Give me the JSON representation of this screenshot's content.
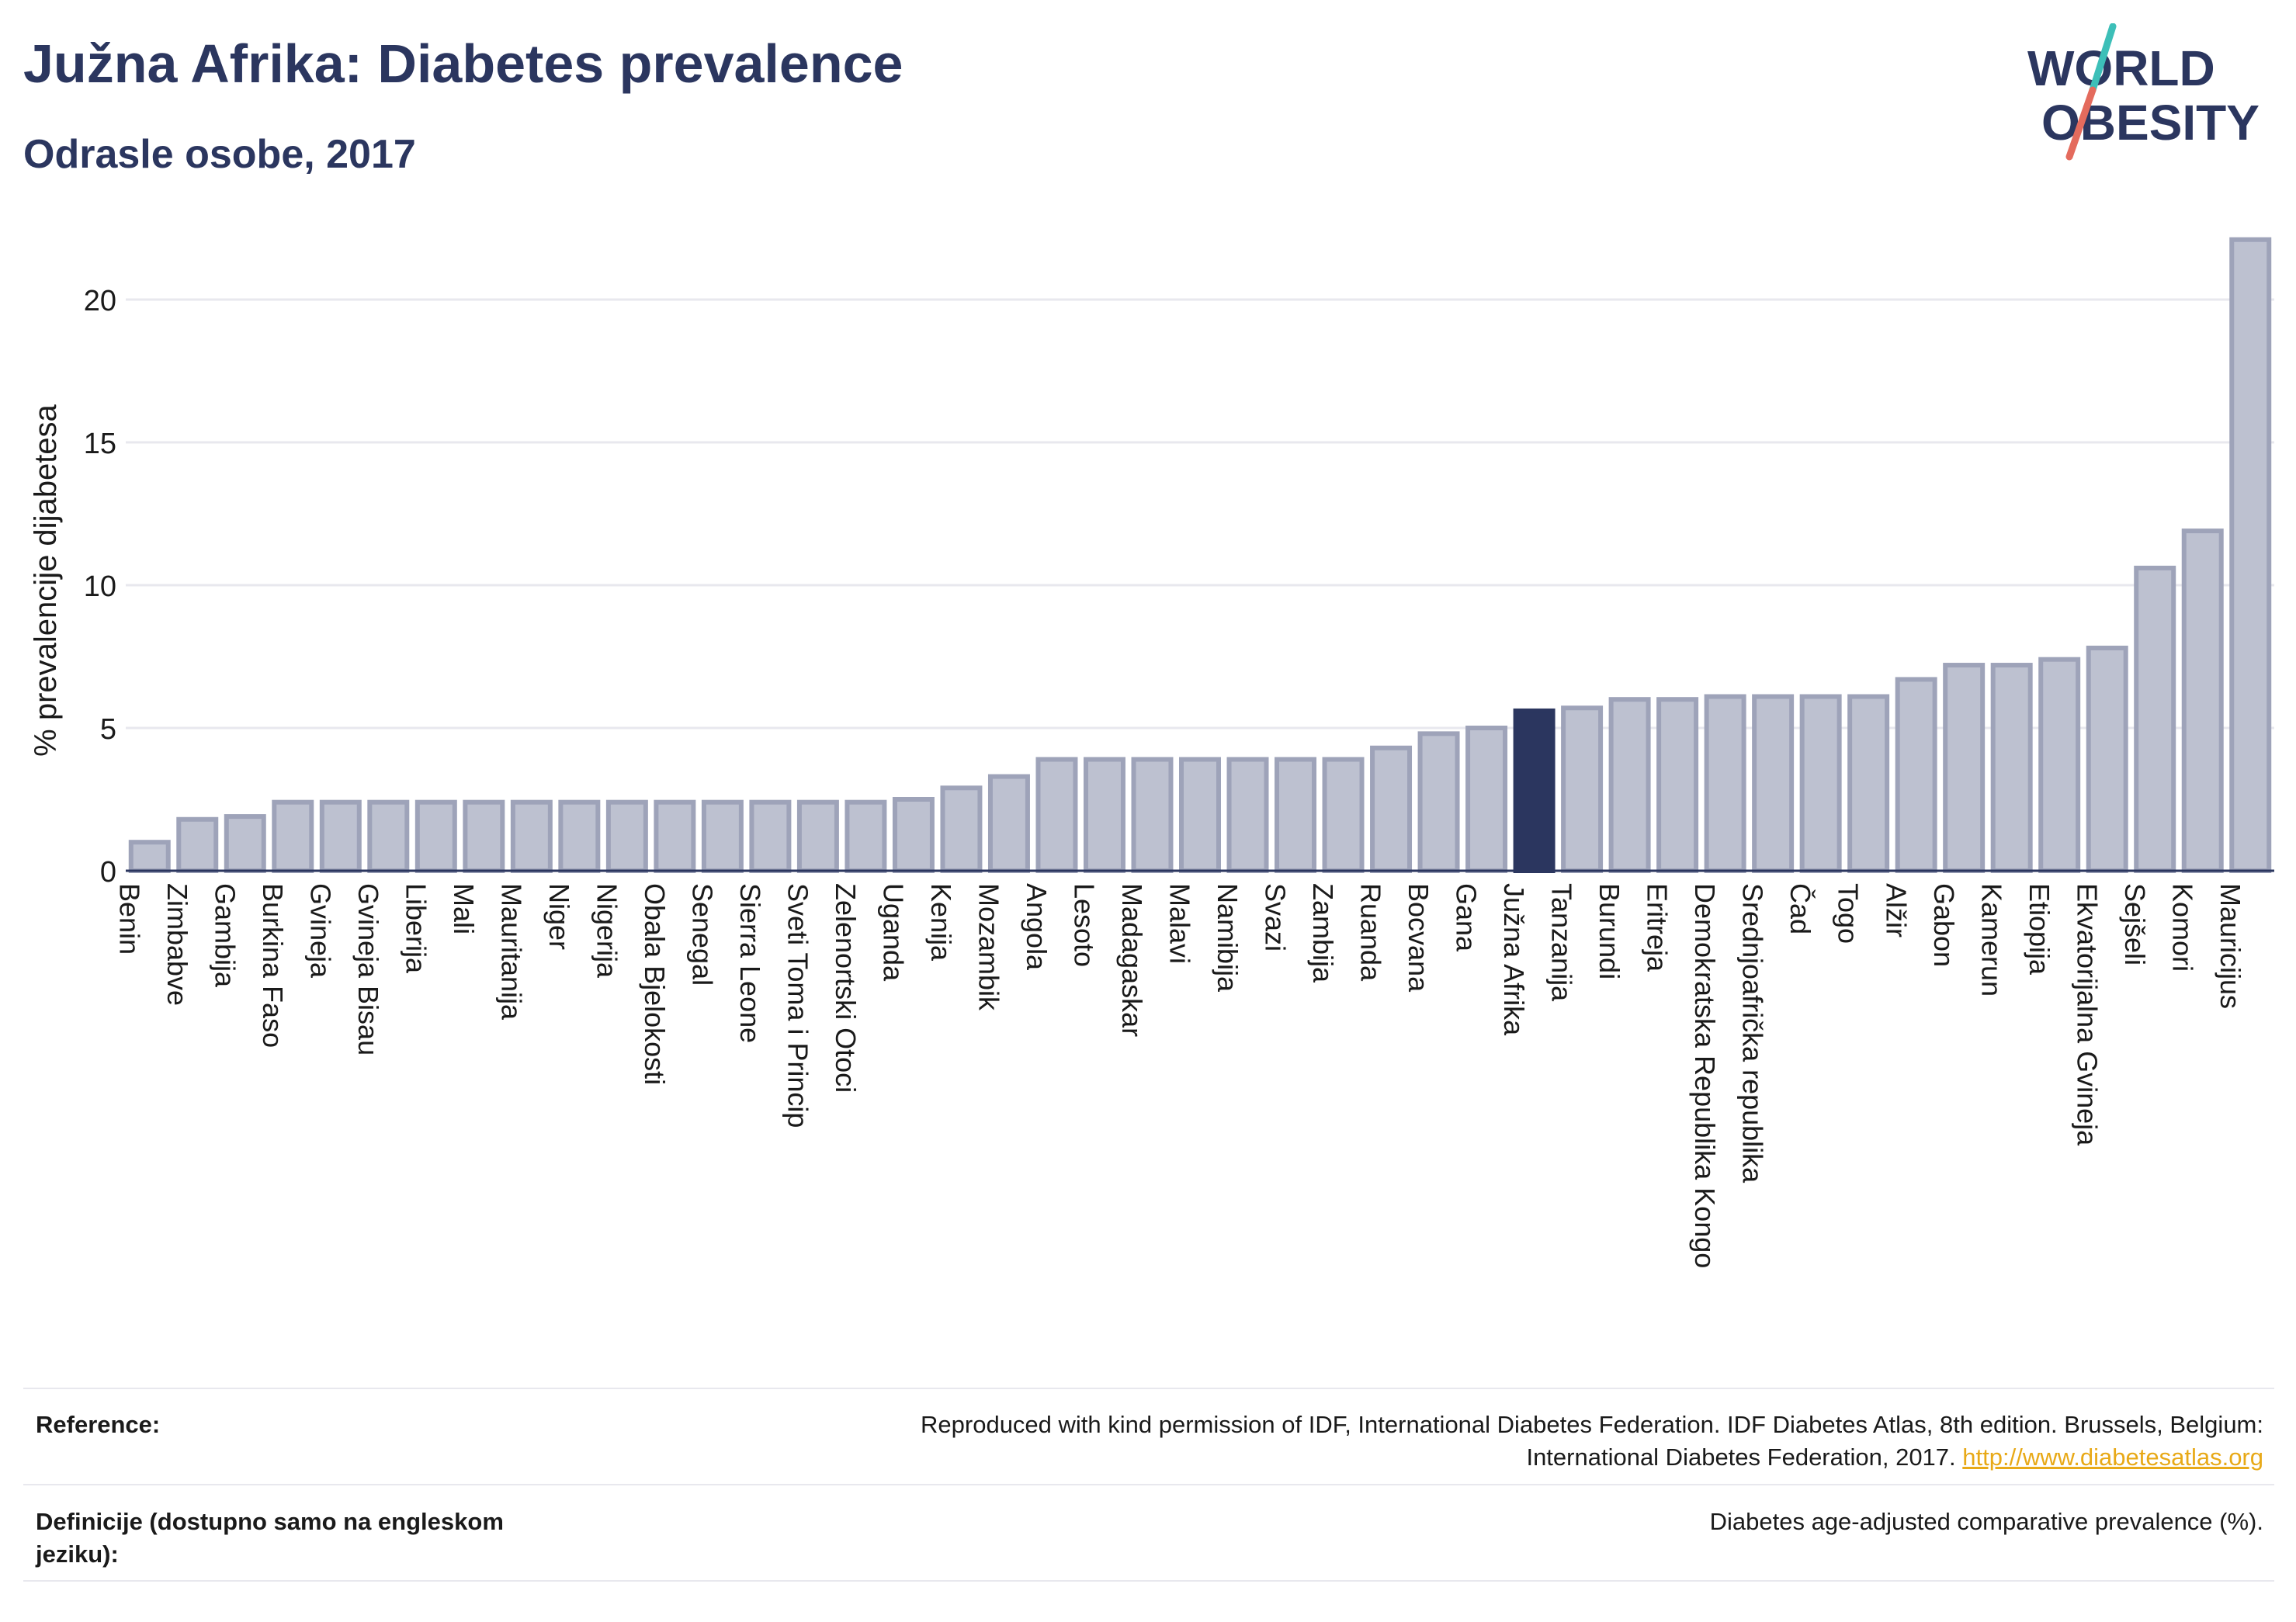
{
  "header": {
    "title": "Južna Afrika: Diabetes prevalence",
    "subtitle": "Odrasle osobe, 2017"
  },
  "logo": {
    "line1": "WORLD",
    "line2": "OBESITY",
    "slash_colors": [
      "#3dbfb8",
      "#e46b5d"
    ],
    "text_color": "#2b365f"
  },
  "colors": {
    "bar": "#bdc1d0",
    "bar_stroke": "#9ea3b9",
    "highlight": "#2b365f",
    "grid": "#e8e8ee"
  },
  "chart_data": {
    "type": "bar",
    "title": "Južna Afrika: Diabetes prevalence",
    "subtitle": "Odrasle osobe, 2017",
    "ylabel": "% prevalencije dijabetesa",
    "xlabel": "",
    "ylim": [
      0,
      22.5
    ],
    "yticks": [
      0,
      5,
      10,
      15,
      20
    ],
    "grid": true,
    "highlight": "Južna Afrika",
    "categories": [
      "Benin",
      "Zimbabve",
      "Gambija",
      "Burkina Faso",
      "Gvineja",
      "Gvineja Bisau",
      "Liberija",
      "Mali",
      "Mauritanija",
      "Niger",
      "Nigerija",
      "Obala Bjelokosti",
      "Senegal",
      "Sierra Leone",
      "Sveti Toma i Princip",
      "Zelenortski Otoci",
      "Uganda",
      "Kenija",
      "Mozambik",
      "Angola",
      "Lesoto",
      "Madagaskar",
      "Malavi",
      "Namibija",
      "Svazi",
      "Zambija",
      "Ruanda",
      "Bocvana",
      "Gana",
      "Južna Afrika",
      "Tanzanija",
      "Burundi",
      "Eritreja",
      "Demokratska Republika Kongo",
      "Srednjoafrička republika",
      "Čad",
      "Togo",
      "Alžir",
      "Gabon",
      "Kamerun",
      "Etiopija",
      "Ekvatorijalna Gvineja",
      "Sejšeli",
      "Komori",
      "Mauricijus"
    ],
    "values": [
      1.0,
      1.8,
      1.9,
      2.4,
      2.4,
      2.4,
      2.4,
      2.4,
      2.4,
      2.4,
      2.4,
      2.4,
      2.4,
      2.4,
      2.4,
      2.4,
      2.5,
      2.9,
      3.3,
      3.9,
      3.9,
      3.9,
      3.9,
      3.9,
      3.9,
      3.9,
      4.3,
      4.8,
      5.0,
      5.6,
      5.7,
      6.0,
      6.0,
      6.1,
      6.1,
      6.1,
      6.1,
      6.7,
      7.2,
      7.2,
      7.4,
      7.8,
      10.6,
      11.9,
      22.1
    ]
  },
  "footer": {
    "reference_label": "Reference:",
    "reference_text_line1": "Reproduced with kind permission of IDF, International Diabetes Federation. IDF Diabetes Atlas, 8th edition. Brussels, Belgium:",
    "reference_text_line2": "International Diabetes Federation, 2017.",
    "reference_link": "http://www.diabetesatlas.org",
    "definition_label_line1": "Definicije (dostupno samo na engleskom",
    "definition_label_line2": "jeziku):",
    "definition_text": "Diabetes age-adjusted comparative prevalence (%)."
  }
}
